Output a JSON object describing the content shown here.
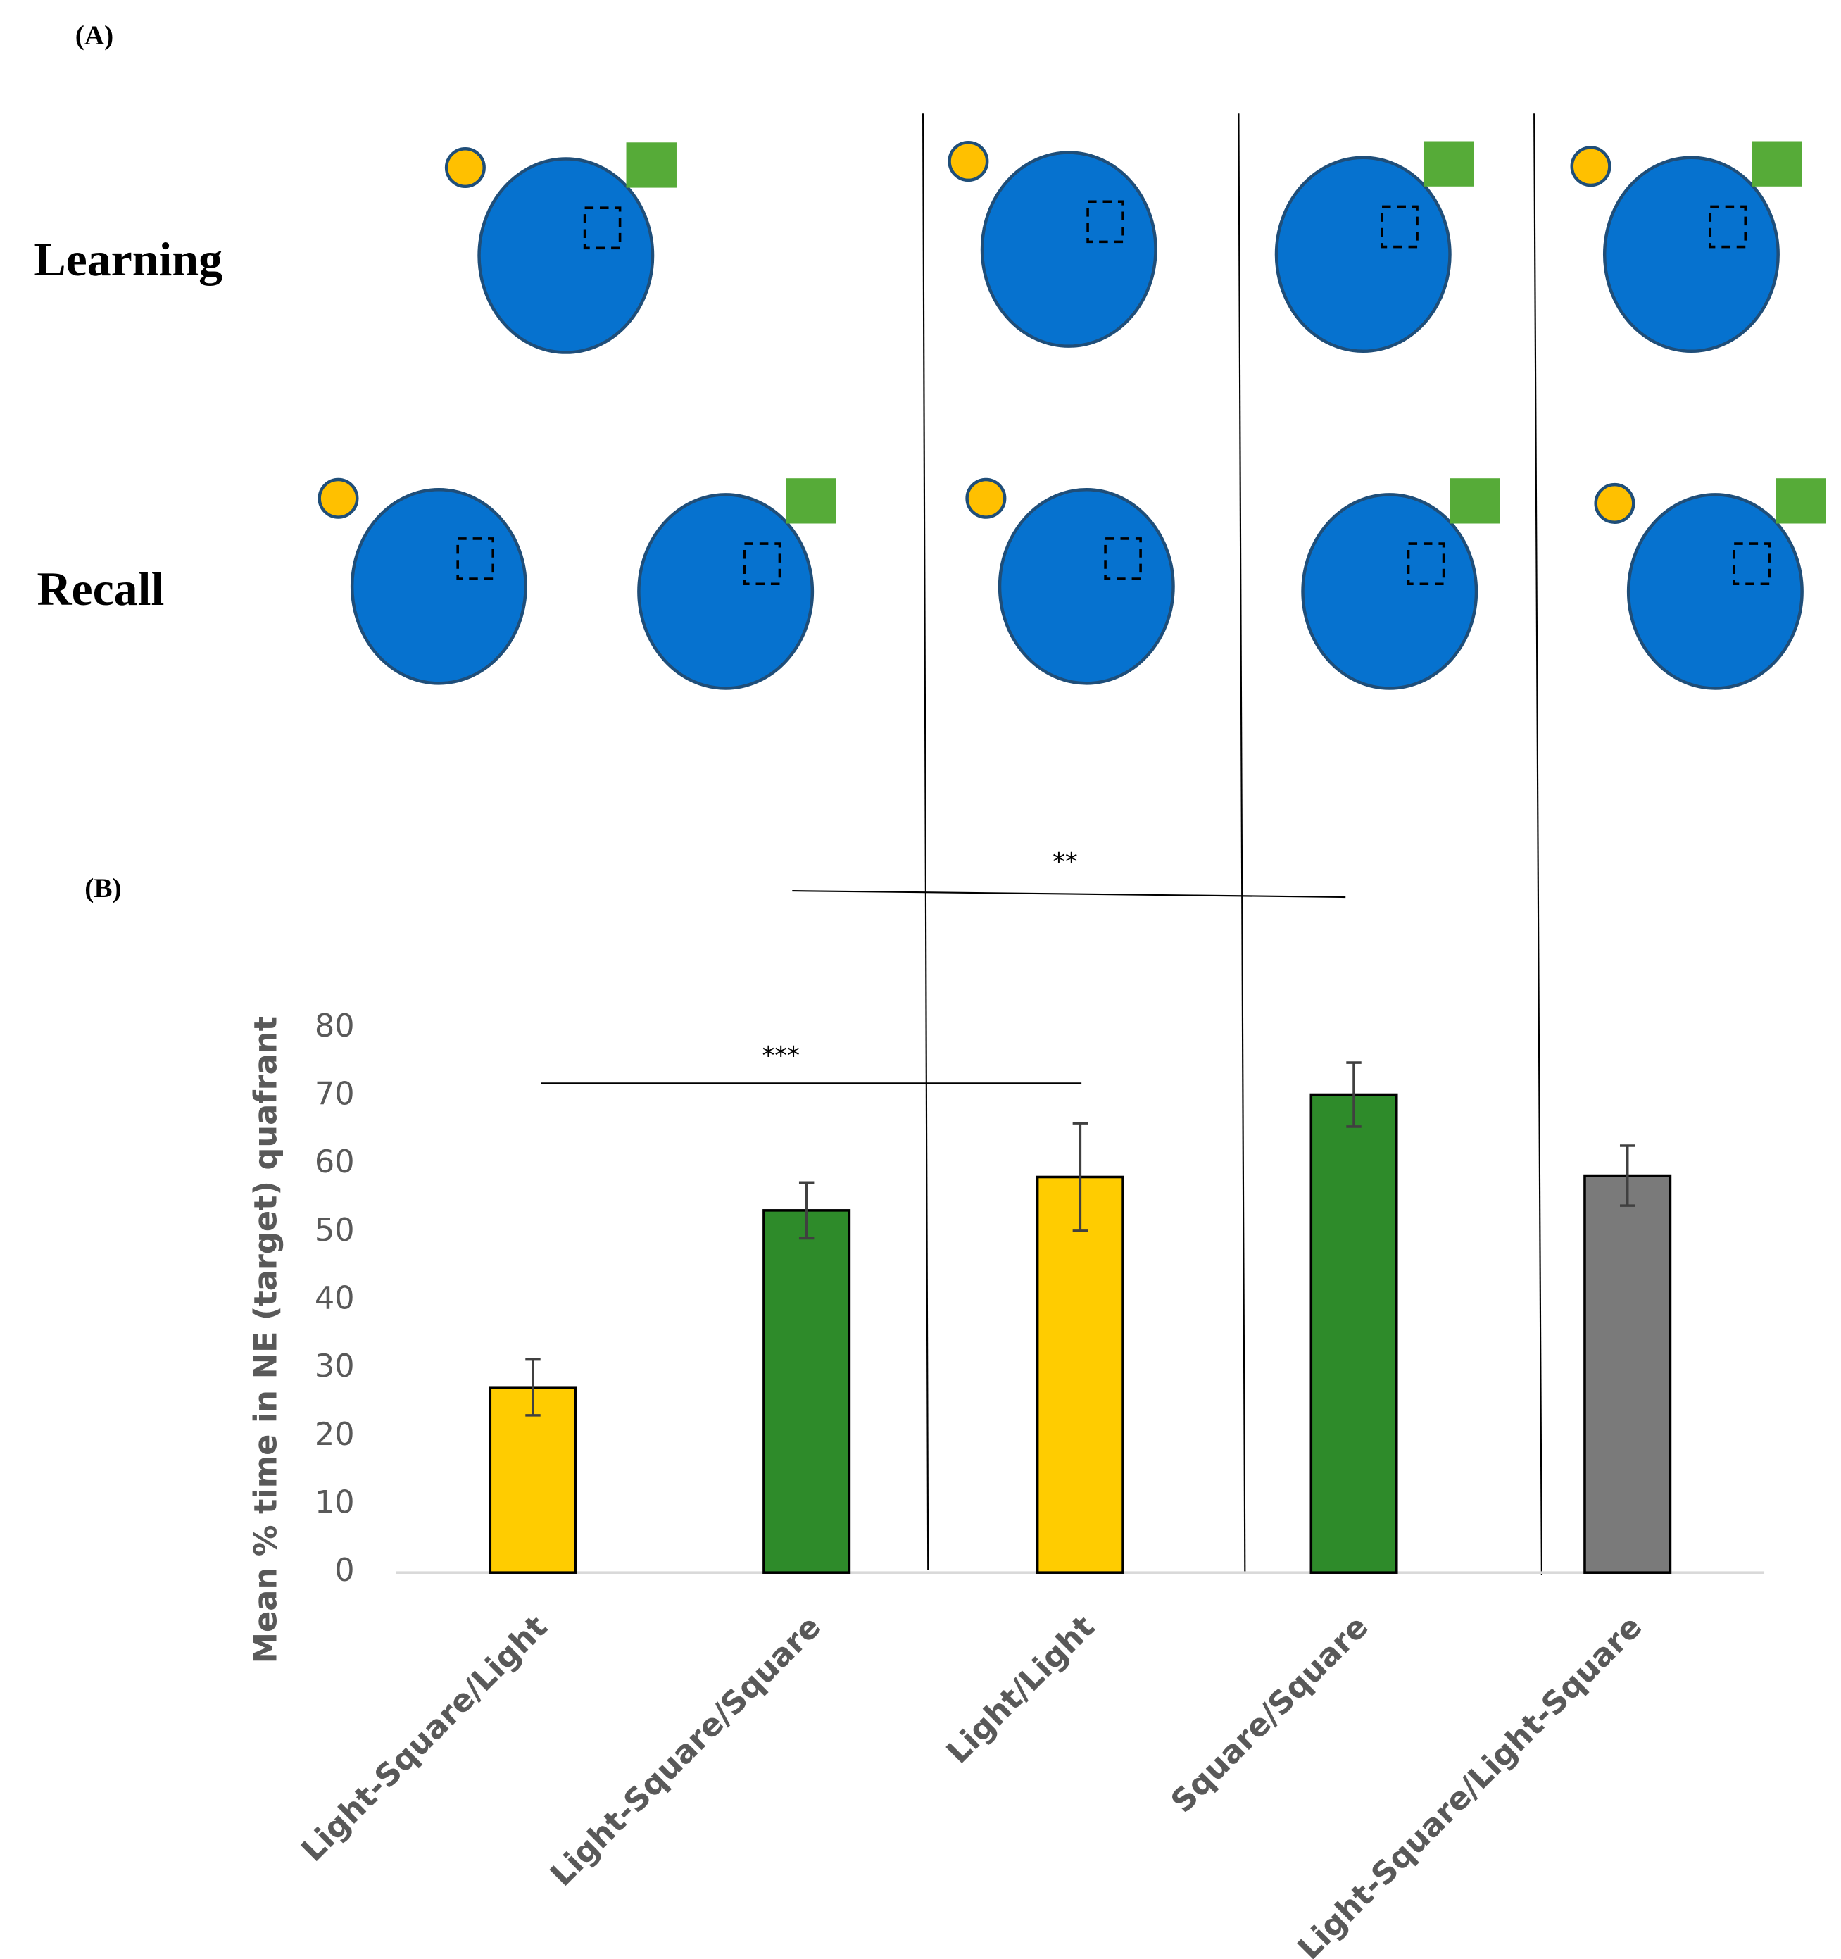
{
  "panel_a": {
    "label": "(A)",
    "rows": [
      "Learning",
      "Recall"
    ]
  },
  "panel_b_label": "(B)",
  "chart_data": {
    "type": "bar",
    "ylabel": "Mean % time in NE (target) quafrant",
    "categories": [
      "Light-Square/Light",
      "Light-Square/Square",
      "Light/Light",
      "Square/Square",
      "Light-Square/Light-Square"
    ],
    "values": [
      27.2,
      53.2,
      58.1,
      70.2,
      58.3
    ],
    "errors": [
      4.1,
      4.1,
      7.9,
      4.7,
      4.4
    ],
    "colors": [
      "#ffcc00",
      "#2e8b2a",
      "#ffcc00",
      "#2e8b2a",
      "#7a7a7a"
    ],
    "ylim": [
      0,
      80
    ],
    "yticks": [
      0,
      10,
      20,
      30,
      40,
      50,
      60,
      70,
      80
    ],
    "annotations": [
      "***",
      "**"
    ]
  }
}
